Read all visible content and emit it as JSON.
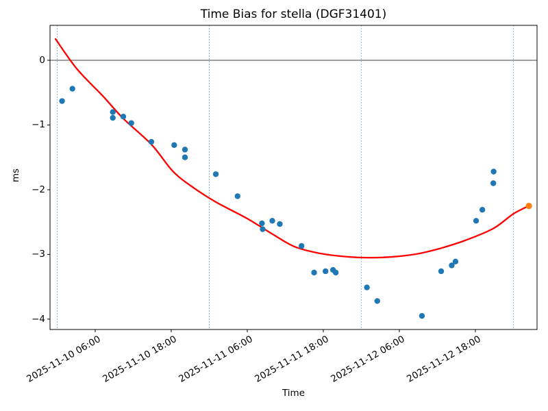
{
  "figure": {
    "title": "Time Bias for stella (DGF31401)",
    "xlabel": "Time",
    "ylabel": "ms"
  },
  "chart_data": {
    "type": "scatter",
    "title": "Time Bias for stella (DGF31401)",
    "xlabel": "Time",
    "ylabel": "ms",
    "x_range": [
      "2025-11-09T22:52",
      "2025-11-13T03:44"
    ],
    "y_range": [
      -4.16,
      0.54
    ],
    "y_ticks": [
      {
        "value": 0,
        "label": "0"
      },
      {
        "value": -1,
        "label": "−1"
      },
      {
        "value": -2,
        "label": "−2"
      },
      {
        "value": -3,
        "label": "−3"
      },
      {
        "value": -4,
        "label": "−4"
      }
    ],
    "x_ticks": [
      {
        "t": "2025-11-10T06:00",
        "label": "2025-11-10 06:00"
      },
      {
        "t": "2025-11-10T18:00",
        "label": "2025-11-10 18:00"
      },
      {
        "t": "2025-11-11T06:00",
        "label": "2025-11-11 06:00"
      },
      {
        "t": "2025-11-11T18:00",
        "label": "2025-11-11 18:00"
      },
      {
        "t": "2025-11-12T06:00",
        "label": "2025-11-12 06:00"
      },
      {
        "t": "2025-11-12T18:00",
        "label": "2025-11-12 18:00"
      }
    ],
    "x_gridlines": [
      "2025-11-10T00:00",
      "2025-11-11T00:00",
      "2025-11-12T00:00",
      "2025-11-13T00:00"
    ],
    "gridline_style": "dotted-vertical",
    "zero_line": true,
    "legend": "none",
    "series": [
      {
        "name": "observations",
        "type": "scatter",
        "color": "#1f77b4",
        "points": [
          {
            "t": "2025-11-10T00:46",
            "ms": -0.63
          },
          {
            "t": "2025-11-10T02:24",
            "ms": -0.44
          },
          {
            "t": "2025-11-10T08:47",
            "ms": -0.8
          },
          {
            "t": "2025-11-10T08:47",
            "ms": -0.89
          },
          {
            "t": "2025-11-10T10:26",
            "ms": -0.87
          },
          {
            "t": "2025-11-10T11:42",
            "ms": -0.97
          },
          {
            "t": "2025-11-10T14:52",
            "ms": -1.26
          },
          {
            "t": "2025-11-10T18:28",
            "ms": -1.31
          },
          {
            "t": "2025-11-10T20:10",
            "ms": -1.38
          },
          {
            "t": "2025-11-10T20:10",
            "ms": -1.5
          },
          {
            "t": "2025-11-11T01:02",
            "ms": -1.76
          },
          {
            "t": "2025-11-11T04:28",
            "ms": -2.1
          },
          {
            "t": "2025-11-11T08:19",
            "ms": -2.52
          },
          {
            "t": "2025-11-11T08:26",
            "ms": -2.61
          },
          {
            "t": "2025-11-11T09:57",
            "ms": -2.48
          },
          {
            "t": "2025-11-11T11:08",
            "ms": -2.53
          },
          {
            "t": "2025-11-11T14:34",
            "ms": -2.87
          },
          {
            "t": "2025-11-11T16:33",
            "ms": -3.28
          },
          {
            "t": "2025-11-11T18:21",
            "ms": -3.26
          },
          {
            "t": "2025-11-11T19:32",
            "ms": -3.24
          },
          {
            "t": "2025-11-11T19:58",
            "ms": -3.28
          },
          {
            "t": "2025-11-12T00:53",
            "ms": -3.51
          },
          {
            "t": "2025-11-12T02:31",
            "ms": -3.72
          },
          {
            "t": "2025-11-12T09:34",
            "ms": -3.95
          },
          {
            "t": "2025-11-12T12:36",
            "ms": -3.26
          },
          {
            "t": "2025-11-12T14:16",
            "ms": -3.17
          },
          {
            "t": "2025-11-12T14:52",
            "ms": -3.11
          },
          {
            "t": "2025-11-12T18:07",
            "ms": -2.48
          },
          {
            "t": "2025-11-12T19:06",
            "ms": -2.31
          },
          {
            "t": "2025-11-12T20:50",
            "ms": -1.9
          },
          {
            "t": "2025-11-12T20:53",
            "ms": -1.72
          }
        ]
      },
      {
        "name": "latest-point",
        "type": "scatter",
        "color": "#ff7f0e",
        "points": [
          {
            "t": "2025-11-13T02:27",
            "ms": -2.25
          }
        ]
      },
      {
        "name": "fit-curve",
        "type": "line",
        "color": "#ff0000",
        "points": [
          {
            "t": "2025-11-09T23:44",
            "ms": 0.33
          },
          {
            "t": "2025-11-10T03:05",
            "ms": -0.13
          },
          {
            "t": "2025-11-10T07:11",
            "ms": -0.55
          },
          {
            "t": "2025-11-10T10:26",
            "ms": -0.9
          },
          {
            "t": "2025-11-10T14:52",
            "ms": -1.3
          },
          {
            "t": "2025-11-10T18:13",
            "ms": -1.71
          },
          {
            "t": "2025-11-10T21:14",
            "ms": -1.95
          },
          {
            "t": "2025-11-11T01:02",
            "ms": -2.19
          },
          {
            "t": "2025-11-11T05:53",
            "ms": -2.44
          },
          {
            "t": "2025-11-11T10:13",
            "ms": -2.7
          },
          {
            "t": "2025-11-11T13:28",
            "ms": -2.88
          },
          {
            "t": "2025-11-11T17:14",
            "ms": -2.98
          },
          {
            "t": "2025-11-11T21:02",
            "ms": -3.03
          },
          {
            "t": "2025-11-12T00:49",
            "ms": -3.05
          },
          {
            "t": "2025-11-12T04:35",
            "ms": -3.04
          },
          {
            "t": "2025-11-12T08:55",
            "ms": -2.99
          },
          {
            "t": "2025-11-12T12:42",
            "ms": -2.9
          },
          {
            "t": "2025-11-12T16:29",
            "ms": -2.78
          },
          {
            "t": "2025-11-12T20:49",
            "ms": -2.6
          },
          {
            "t": "2025-11-13T00:03",
            "ms": -2.37
          },
          {
            "t": "2025-11-13T02:27",
            "ms": -2.25
          }
        ]
      }
    ],
    "colors": {
      "scatter": "#1f77b4",
      "latest": "#ff7f0e",
      "fit": "#ff0000",
      "gridline": "#6ea6d8",
      "axis": "#000000",
      "background": "#ffffff"
    }
  }
}
